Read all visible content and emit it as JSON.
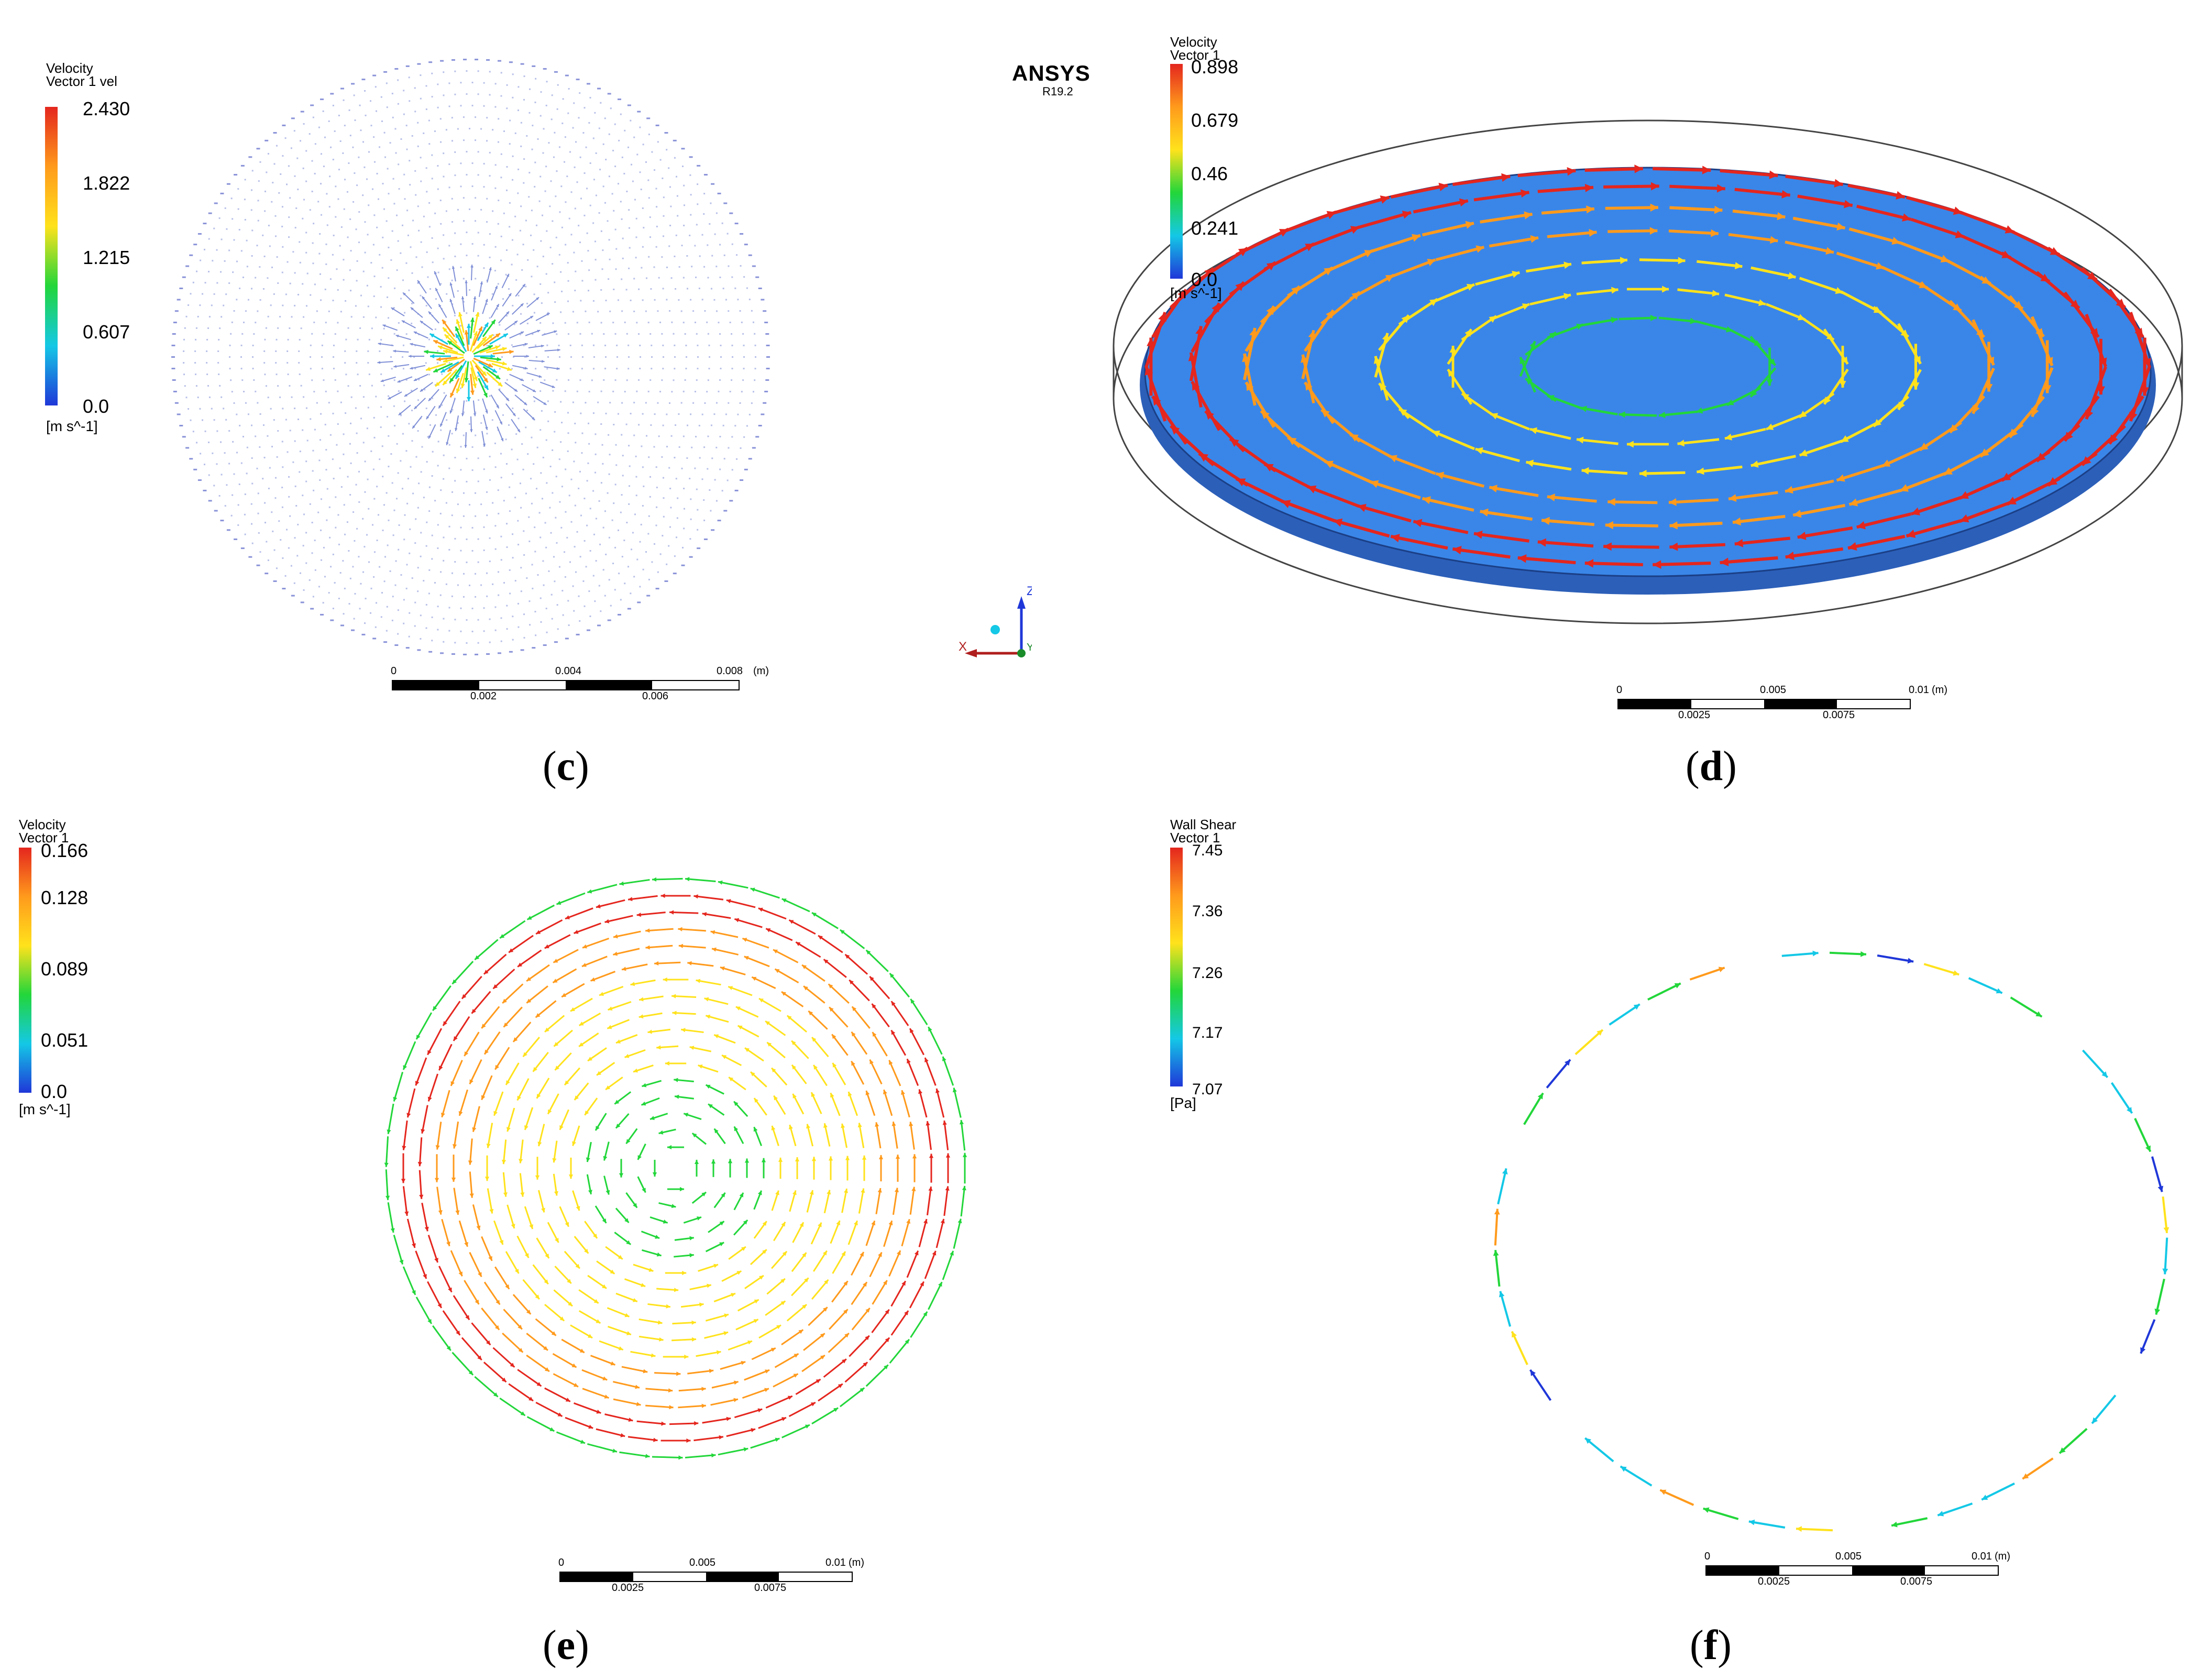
{
  "panels": [
    {
      "id": "c",
      "caption_letter": "c",
      "legend": {
        "title": [
          "Velocity",
          "Vector 1 vel"
        ],
        "ticks": [
          "2.430",
          "1.822",
          "1.215",
          "0.607",
          "0.0"
        ],
        "unit": "[m s^-1]"
      },
      "scale": {
        "top": [
          "0",
          "0.004",
          "0.008",
          "(m)"
        ],
        "bottom": [
          "0.002",
          "0.006"
        ]
      }
    },
    {
      "id": "d",
      "caption_letter": "d",
      "legend": {
        "title": [
          "Velocity",
          "Vector 1"
        ],
        "ticks": [
          "0.898",
          "0.679",
          "0.46",
          "0.241",
          "0.0"
        ],
        "unit": "[m s^-1]"
      },
      "scale": {
        "top": [
          "0",
          "0.005",
          "0.01",
          "(m)"
        ],
        "bottom": [
          "0.0025",
          "0.0075"
        ]
      }
    },
    {
      "id": "e",
      "caption_letter": "e",
      "legend": {
        "title": [
          "Velocity",
          "Vector 1"
        ],
        "ticks": [
          "0.166",
          "0.128",
          "0.089",
          "0.051",
          "0.0"
        ],
        "unit": "[m s^-1]"
      },
      "scale": {
        "top": [
          "0",
          "0.005",
          "0.01",
          "(m)"
        ],
        "bottom": [
          "0.0025",
          "0.0075"
        ]
      }
    },
    {
      "id": "f",
      "caption_letter": "f",
      "legend": {
        "title": [
          "Wall Shear",
          "Vector 1"
        ],
        "ticks": [
          "7.45",
          "7.36",
          "7.26",
          "7.17",
          "7.07"
        ],
        "unit": "[Pa]"
      },
      "scale": {
        "top": [
          "0",
          "0.005",
          "0.01",
          "(m)"
        ],
        "bottom": [
          "0.0025",
          "0.0075"
        ]
      }
    }
  ],
  "branding": {
    "name": "ANSYS",
    "version": "R19.2"
  },
  "triad": {
    "z": "Z",
    "x": "X",
    "y": "Y"
  },
  "colors": {
    "red": "#e4261e",
    "orange": "#ff9a1c",
    "yellow": "#ffe21c",
    "green": "#22d63a",
    "cyan": "#14c8e6",
    "blue": "#1f37d8",
    "surface": "#3a86e8"
  }
}
